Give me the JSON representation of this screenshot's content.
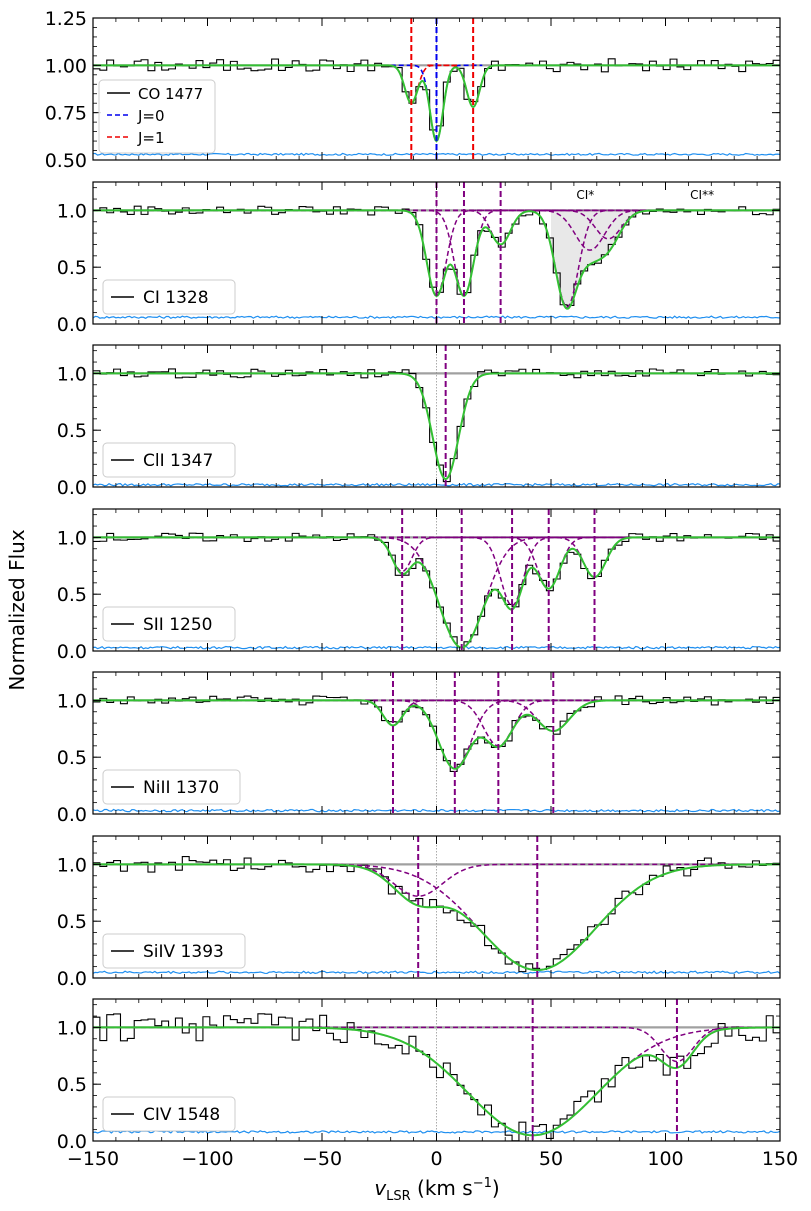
{
  "figure": {
    "ylabel": "Normalized Flux",
    "xlabel_main": "v",
    "xlabel_sub": "LSR",
    "xlabel_unit": " (km s",
    "xlabel_sup": "−1",
    "xlabel_close": ")",
    "xlim": [
      -150,
      150
    ],
    "xticks": [
      -150,
      -100,
      -50,
      0,
      50,
      100,
      150
    ],
    "xtick_labels": [
      "−150",
      "−100",
      "−50",
      "0",
      "50",
      "100",
      "150"
    ]
  },
  "colors": {
    "data": "#000000",
    "model": "#33c033",
    "components": "#800080",
    "continuum": "#a0a0a0",
    "error": "#1f8ff0",
    "j0": "#0000ee",
    "j1": "#ee0000",
    "shade": "#e8e8e8"
  },
  "chart_data": [
    {
      "type": "line",
      "legend": "CO 1477",
      "legend_extra": [
        "J=0",
        "J=1"
      ],
      "ylim": [
        0.5,
        1.25
      ],
      "yticks": [
        0.5,
        0.75,
        1.0,
        1.25
      ],
      "ytick_labels": [
        "0.50",
        "0.75",
        "1.00",
        "1.25"
      ],
      "components_j0": [
        0
      ],
      "components_j1": [
        -11,
        16
      ],
      "annotations": []
    },
    {
      "type": "line",
      "legend": "CI 1328",
      "ylim": [
        0,
        1.25
      ],
      "yticks": [
        0,
        0.5,
        1.0
      ],
      "ytick_labels": [
        "0.0",
        "0.5",
        "1.0"
      ],
      "components": [
        0,
        12,
        28
      ],
      "annotations": [
        {
          "text": "CI*",
          "x": 65
        },
        {
          "text": "CI**",
          "x": 116
        }
      ]
    },
    {
      "type": "line",
      "legend": "ClI 1347",
      "ylim": [
        0,
        1.25
      ],
      "yticks": [
        0,
        0.5,
        1.0
      ],
      "ytick_labels": [
        "0.0",
        "0.5",
        "1.0"
      ],
      "components": [
        4
      ],
      "annotations": []
    },
    {
      "type": "line",
      "legend": "SII 1250",
      "ylim": [
        0,
        1.25
      ],
      "yticks": [
        0,
        0.5,
        1.0
      ],
      "ytick_labels": [
        "0.0",
        "0.5",
        "1.0"
      ],
      "components": [
        -15,
        11,
        33,
        49,
        69
      ],
      "annotations": []
    },
    {
      "type": "line",
      "legend": "NiII 1370",
      "ylim": [
        0,
        1.25
      ],
      "yticks": [
        0,
        0.5,
        1.0
      ],
      "ytick_labels": [
        "0.0",
        "0.5",
        "1.0"
      ],
      "components": [
        -19,
        8,
        27,
        51
      ],
      "annotations": []
    },
    {
      "type": "line",
      "legend": "SiIV 1393",
      "ylim": [
        0,
        1.25
      ],
      "yticks": [
        0,
        0.5,
        1.0
      ],
      "ytick_labels": [
        "0.0",
        "0.5",
        "1.0"
      ],
      "components": [
        -8,
        44
      ],
      "annotations": []
    },
    {
      "type": "line",
      "legend": "CIV 1548",
      "ylim": [
        0,
        1.25
      ],
      "yticks": [
        0,
        0.5,
        1.0
      ],
      "ytick_labels": [
        "0.0",
        "0.5",
        "1.0"
      ],
      "components": [
        42,
        105
      ],
      "annotations": []
    }
  ]
}
